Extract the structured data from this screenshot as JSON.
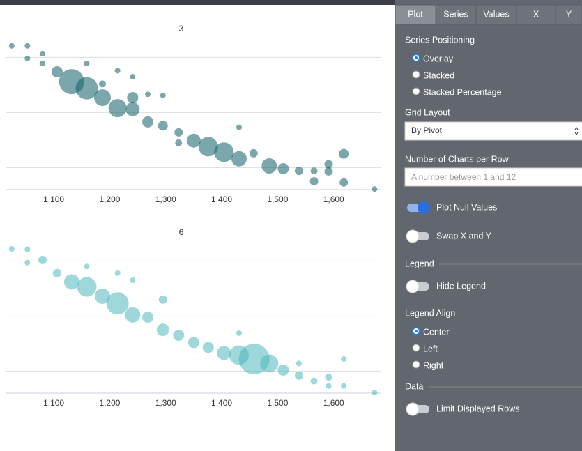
{
  "chart_data": [
    {
      "type": "scatter",
      "title": "3",
      "color": "#0e5f67",
      "x": [
        1025,
        1053,
        1053,
        1080,
        1080,
        1106,
        1132,
        1159,
        1159,
        1187,
        1187,
        1214,
        1214,
        1241,
        1241,
        1241,
        1268,
        1268,
        1295,
        1295,
        1323,
        1323,
        1350,
        1376,
        1404,
        1431,
        1431,
        1457,
        1485,
        1510,
        1538,
        1565,
        1565,
        1591,
        1591,
        1618,
        1618,
        1673
      ],
      "values": [
        3.21,
        3.21,
        2.98,
        3.07,
        2.89,
        2.74,
        2.56,
        2.44,
        2.89,
        2.27,
        2.52,
        2.08,
        2.76,
        2.06,
        2.65,
        2.27,
        1.83,
        2.33,
        1.76,
        2.31,
        1.64,
        1.45,
        1.49,
        1.38,
        1.28,
        1.16,
        1.73,
        1.26,
        1.03,
        0.98,
        0.94,
        0.75,
        0.94,
        0.93,
        1.06,
        1.25,
        0.73,
        0.61
      ],
      "sizes": [
        4,
        4,
        4,
        4,
        4,
        8,
        18,
        16,
        4,
        12,
        5,
        13,
        4,
        10,
        4,
        8,
        8,
        4,
        7,
        4,
        6,
        5,
        10,
        14,
        14,
        11,
        4,
        6,
        11,
        8,
        6,
        6,
        5,
        6,
        6,
        7,
        6,
        4
      ],
      "xlim": [
        1014,
        1685
      ],
      "ylim": [
        0.6,
        3.6
      ],
      "yticks": [
        1,
        2,
        3
      ],
      "grid": true,
      "xticks": [
        {
          "value": 1100,
          "label": "1,100"
        },
        {
          "value": 1200,
          "label": "1,200"
        },
        {
          "value": 1300,
          "label": "1,300"
        },
        {
          "value": 1400,
          "label": "1,400"
        },
        {
          "value": 1500,
          "label": "1,500"
        },
        {
          "value": 1600,
          "label": "1,600"
        }
      ]
    },
    {
      "type": "scatter",
      "title": "6",
      "color": "#4fb8bb",
      "x": [
        1025,
        1053,
        1053,
        1080,
        1106,
        1132,
        1159,
        1159,
        1187,
        1214,
        1214,
        1241,
        1241,
        1268,
        1295,
        1295,
        1323,
        1350,
        1376,
        1404,
        1431,
        1431,
        1458,
        1485,
        1510,
        1538,
        1538,
        1565,
        1591,
        1591,
        1618,
        1618,
        1673
      ],
      "values": [
        3.22,
        3.21,
        2.97,
        3.02,
        2.78,
        2.62,
        2.53,
        2.9,
        2.36,
        2.23,
        2.78,
        2.02,
        2.65,
        1.98,
        2.3,
        1.75,
        1.65,
        1.52,
        1.43,
        1.33,
        1.29,
        1.69,
        1.22,
        1.14,
        1.02,
        0.92,
        1.14,
        0.82,
        0.89,
        0.73,
        1.22,
        0.73,
        0.61
      ],
      "sizes": [
        4,
        4,
        4,
        6,
        6,
        11,
        14,
        4,
        11,
        16,
        4,
        11,
        4,
        8,
        6,
        9,
        8,
        8,
        8,
        10,
        14,
        4,
        22,
        13,
        8,
        6,
        4,
        5,
        5,
        4,
        4,
        4,
        4
      ],
      "xlim": [
        1014,
        1685
      ],
      "ylim": [
        0.6,
        3.6
      ],
      "yticks": [
        1,
        2,
        3
      ],
      "grid": true,
      "xticks": [
        {
          "value": 1100,
          "label": "1,100"
        },
        {
          "value": 1200,
          "label": "1,200"
        },
        {
          "value": 1300,
          "label": "1,300"
        },
        {
          "value": 1400,
          "label": "1,400"
        },
        {
          "value": 1500,
          "label": "1,500"
        },
        {
          "value": 1600,
          "label": "1,600"
        }
      ]
    }
  ],
  "panel": {
    "tabs": [
      "Plot",
      "Series",
      "Values",
      "X",
      "Y"
    ],
    "active_tab": 0,
    "series_positioning": {
      "label": "Series Positioning",
      "options": [
        "Overlay",
        "Stacked",
        "Stacked Percentage"
      ],
      "selected": 0
    },
    "grid_layout": {
      "label": "Grid Layout",
      "value": "By Pivot"
    },
    "charts_per_row": {
      "label": "Number of Charts per Row",
      "placeholder": "A number between 1 and 12"
    },
    "plot_null": {
      "label": "Plot Null Values",
      "on": true
    },
    "swap_xy": {
      "label": "Swap X and Y",
      "on": false
    },
    "legend": {
      "label": "Legend",
      "hide": {
        "label": "Hide Legend",
        "on": false
      }
    },
    "legend_align": {
      "label": "Legend Align",
      "options": [
        "Center",
        "Left",
        "Right"
      ],
      "selected": 0
    },
    "data": {
      "label": "Data",
      "limit_rows": {
        "label": "Limit Displayed Rows",
        "on": false
      }
    }
  }
}
